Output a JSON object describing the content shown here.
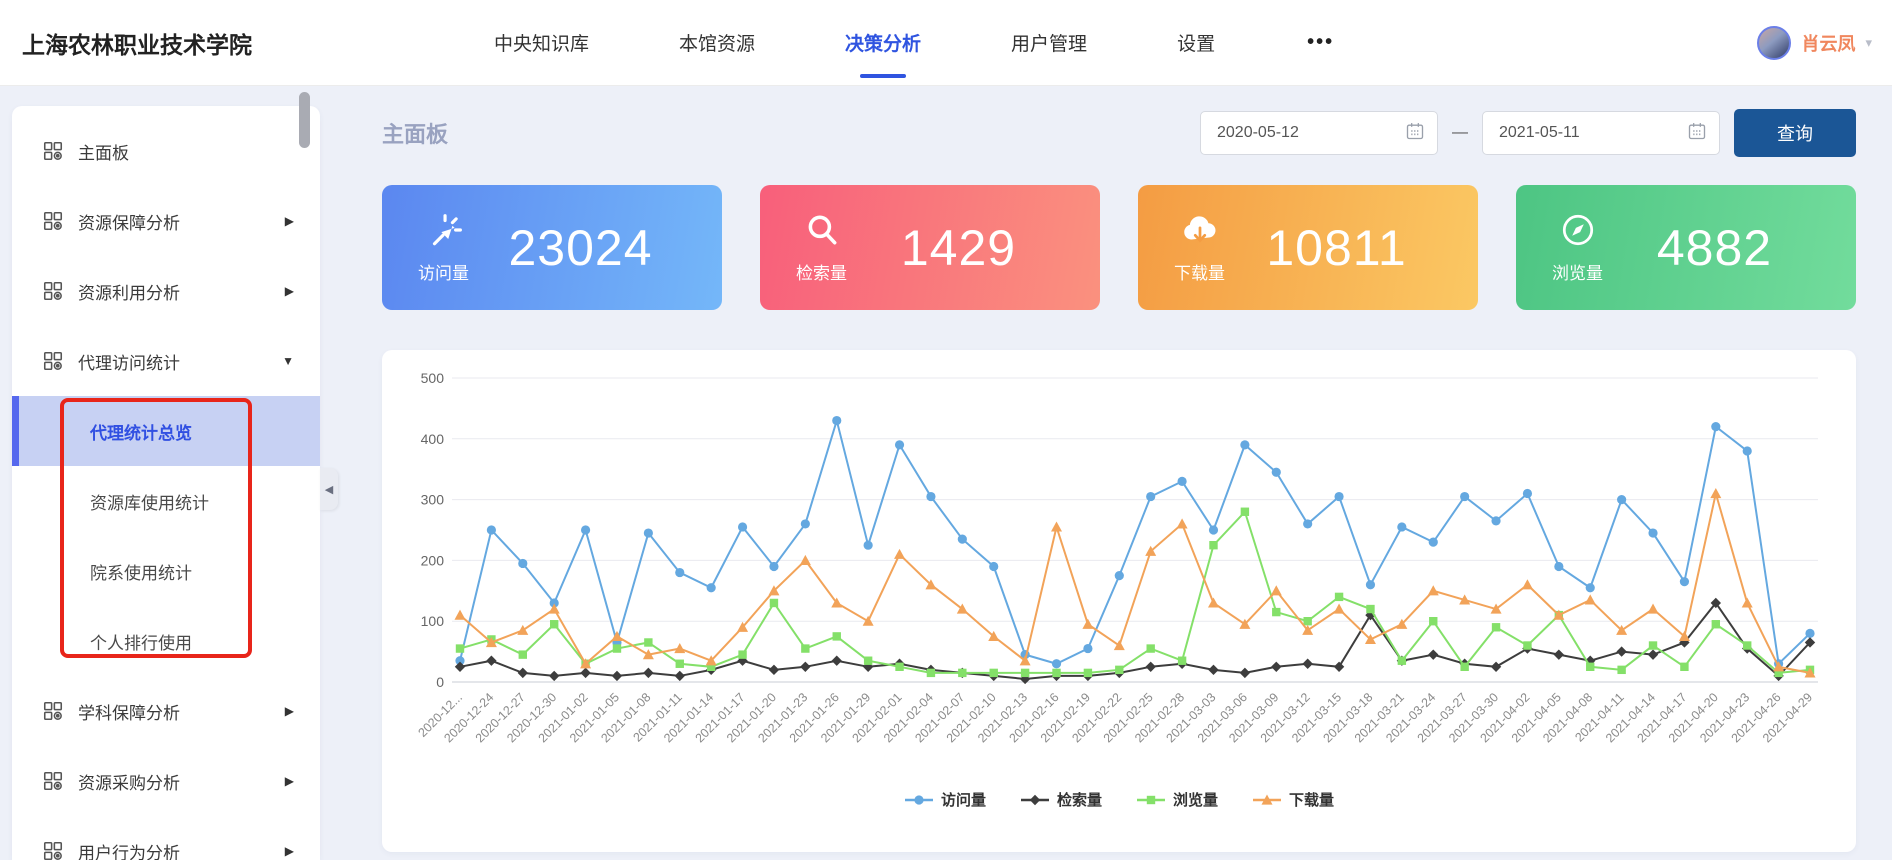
{
  "header": {
    "title": "上海农林职业技术学院",
    "nav": [
      {
        "label": "中央知识库",
        "active": false
      },
      {
        "label": "本馆资源",
        "active": false
      },
      {
        "label": "决策分析",
        "active": true
      },
      {
        "label": "用户管理",
        "active": false
      },
      {
        "label": "设置",
        "active": false
      }
    ],
    "more_label": "•••",
    "user": {
      "name": "肖云凤",
      "caret_icon": "chevron-down-icon"
    },
    "active_color": "#2f54e0"
  },
  "sidebar": {
    "items": [
      {
        "label": "主面板",
        "type": "top",
        "icon": "grid-icon",
        "arrow": "none"
      },
      {
        "label": "资源保障分析",
        "type": "top",
        "icon": "grid-icon",
        "arrow": "chevron-right-icon"
      },
      {
        "label": "资源利用分析",
        "type": "top",
        "icon": "grid-icon",
        "arrow": "chevron-right-icon"
      },
      {
        "label": "代理访问统计",
        "type": "top",
        "icon": "grid-icon",
        "arrow": "chevron-down-icon",
        "expanded": true
      },
      {
        "label": "代理统计总览",
        "type": "sub",
        "selected": true
      },
      {
        "label": "资源库使用统计",
        "type": "sub",
        "selected": false
      },
      {
        "label": "院系使用统计",
        "type": "sub",
        "selected": false
      },
      {
        "label": "个人排行使用",
        "type": "sub",
        "selected": false
      },
      {
        "label": "学科保障分析",
        "type": "top",
        "icon": "grid-icon",
        "arrow": "chevron-right-icon"
      },
      {
        "label": "资源采购分析",
        "type": "top",
        "icon": "grid-icon",
        "arrow": "chevron-right-icon"
      },
      {
        "label": "用户行为分析",
        "type": "top",
        "icon": "grid-icon",
        "arrow": "chevron-right-icon"
      }
    ],
    "selected_bg": "#c7d1f3",
    "selected_text": "#3150e2",
    "annotation_color": "#e8251a"
  },
  "toolbar": {
    "page_title": "主面板",
    "date_start": "2020-05-12",
    "date_separator": "—",
    "date_end": "2021-05-11",
    "query_label": "查询",
    "query_color": "#1b5696",
    "calendar_icon": "calendar-icon"
  },
  "stat_cards": [
    {
      "label": "访问量",
      "value": "23024",
      "icon": "click-icon",
      "gradient": [
        "#5b87f0",
        "#74b7f9"
      ]
    },
    {
      "label": "检索量",
      "value": "1429",
      "icon": "search-icon",
      "gradient": [
        "#f85f7b",
        "#fa917e"
      ]
    },
    {
      "label": "下载量",
      "value": "10811",
      "icon": "cloud-download-icon",
      "gradient": [
        "#f49c43",
        "#fbc863"
      ]
    },
    {
      "label": "浏览量",
      "value": "4882",
      "icon": "compass-icon",
      "gradient": [
        "#4dc583",
        "#72dc9c"
      ]
    }
  ],
  "chart_data": {
    "type": "line",
    "title": "",
    "xlabel": "",
    "ylabel": "",
    "ylim": [
      0,
      500
    ],
    "yticks": [
      0,
      100,
      200,
      300,
      400,
      500
    ],
    "grid": true,
    "legend_position": "bottom",
    "x": [
      "2020-12...",
      "2020-12-24",
      "2020-12-27",
      "2020-12-30",
      "2021-01-02",
      "2021-01-05",
      "2021-01-08",
      "2021-01-11",
      "2021-01-14",
      "2021-01-17",
      "2021-01-20",
      "2021-01-23",
      "2021-01-26",
      "2021-01-29",
      "2021-02-01",
      "2021-02-04",
      "2021-02-07",
      "2021-02-10",
      "2021-02-13",
      "2021-02-16",
      "2021-02-19",
      "2021-02-22",
      "2021-02-25",
      "2021-02-28",
      "2021-03-03",
      "2021-03-06",
      "2021-03-09",
      "2021-03-12",
      "2021-03-15",
      "2021-03-18",
      "2021-03-21",
      "2021-03-24",
      "2021-03-27",
      "2021-03-30",
      "2021-04-02",
      "2021-04-05",
      "2021-04-08",
      "2021-04-11",
      "2021-04-14",
      "2021-04-17",
      "2021-04-20",
      "2021-04-23",
      "2021-04-26",
      "2021-04-29"
    ],
    "series": [
      {
        "name": "访问量",
        "color": "#64a8e0",
        "marker": "circle",
        "values": [
          35,
          250,
          195,
          130,
          250,
          65,
          245,
          180,
          155,
          255,
          190,
          260,
          430,
          225,
          390,
          305,
          235,
          190,
          45,
          30,
          55,
          175,
          305,
          330,
          250,
          390,
          345,
          260,
          305,
          160,
          255,
          230,
          305,
          265,
          310,
          190,
          155,
          300,
          245,
          165,
          420,
          380,
          30,
          80
        ]
      },
      {
        "name": "检索量",
        "color": "#3d3d3d",
        "marker": "diamond",
        "values": [
          25,
          35,
          15,
          10,
          15,
          10,
          15,
          10,
          20,
          35,
          20,
          25,
          35,
          25,
          30,
          20,
          15,
          10,
          5,
          10,
          10,
          15,
          25,
          30,
          20,
          15,
          25,
          30,
          25,
          110,
          35,
          45,
          30,
          25,
          55,
          45,
          35,
          50,
          45,
          65,
          130,
          55,
          10,
          65
        ]
      },
      {
        "name": "浏览量",
        "color": "#84e069",
        "marker": "square",
        "values": [
          55,
          70,
          45,
          95,
          30,
          55,
          65,
          30,
          25,
          45,
          130,
          55,
          75,
          35,
          25,
          15,
          15,
          15,
          15,
          15,
          15,
          20,
          55,
          35,
          225,
          280,
          115,
          100,
          140,
          120,
          35,
          100,
          25,
          90,
          60,
          110,
          25,
          20,
          60,
          25,
          95,
          60,
          15,
          20
        ]
      },
      {
        "name": "下载量",
        "color": "#f2a359",
        "marker": "triangle",
        "values": [
          110,
          65,
          85,
          120,
          30,
          75,
          45,
          55,
          35,
          90,
          150,
          200,
          130,
          100,
          210,
          160,
          120,
          75,
          35,
          255,
          95,
          60,
          215,
          260,
          130,
          95,
          150,
          85,
          120,
          70,
          95,
          150,
          135,
          120,
          160,
          110,
          135,
          85,
          120,
          75,
          310,
          130,
          25,
          15
        ]
      }
    ]
  }
}
